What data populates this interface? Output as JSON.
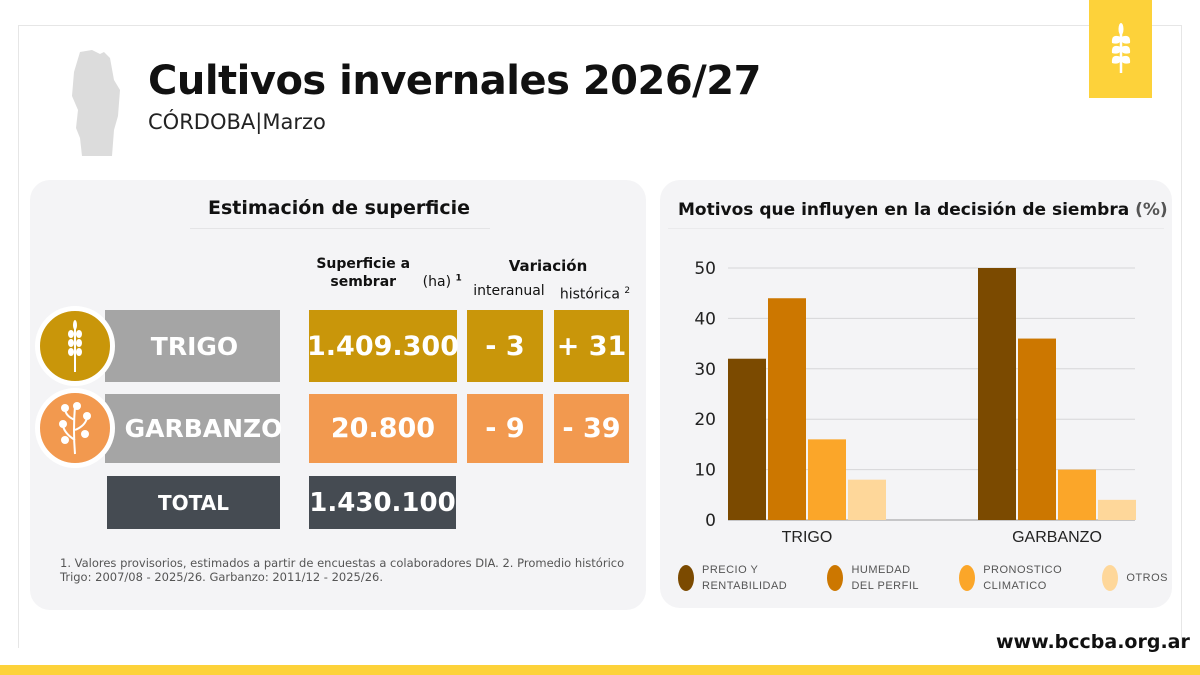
{
  "header": {
    "title": "Cultivos invernales 2026/27",
    "region": "CÓRDOBA",
    "separator": "|",
    "month": "Marzo"
  },
  "table": {
    "title": "Estimación de superficie",
    "col_surface_bold": "Superficie a sembrar",
    "col_surface_unit": "(ha)",
    "col_surface_note": "1",
    "col_variation": "Variación",
    "col_interanual": "interanual",
    "col_historica": "histórica",
    "col_historica_note": "2",
    "rows": [
      {
        "crop": "TRIGO",
        "surface": "1.409.300",
        "interanual": "- 3",
        "historica": "+ 31",
        "color": "#C9960A",
        "icon": "wheat-icon"
      },
      {
        "crop": "GARBANZO",
        "surface": "20.800",
        "interanual": "- 9",
        "historica": "- 39",
        "color": "#F2994F",
        "icon": "chickpea-plant-icon"
      }
    ],
    "total": {
      "label": "TOTAL",
      "surface": "1.430.100"
    },
    "footnote": "1. Valores provisorios, estimados a partir de encuestas a colaboradores DIA. 2. Promedio histórico Trigo: 2007/08 - 2025/26. Garbanzo: 2011/12 - 2025/26."
  },
  "chart_data": {
    "type": "bar",
    "title": "Motivos que influyen en la decisión de siembra",
    "title_unit": "(%)",
    "categories": [
      "TRIGO",
      "GARBANZO"
    ],
    "series": [
      {
        "name": "PRECIO Y RENTABILIDAD",
        "line1": "PRECIO Y",
        "line2": "RENTABILIDAD",
        "color": "#7B4A00",
        "values": [
          32,
          50
        ]
      },
      {
        "name": "HUMEDAD DEL PERFIL",
        "line1": "HUMEDAD",
        "line2": "DEL PERFIL",
        "color": "#CC7700",
        "values": [
          44,
          36
        ]
      },
      {
        "name": "PRONOSTICO CLIMATICO",
        "line1": "PRONOSTICO",
        "line2": "CLIMATICO",
        "color": "#FBA629",
        "values": [
          16,
          10
        ]
      },
      {
        "name": "OTROS",
        "line1": "OTROS",
        "line2": "",
        "color": "#FED79A",
        "values": [
          8,
          4
        ]
      }
    ],
    "ylim": [
      0,
      50
    ],
    "yticks": [
      0,
      10,
      20,
      30,
      40,
      50
    ],
    "grid": true,
    "legend": "bottom",
    "xlabel": "",
    "ylabel": ""
  },
  "footer": {
    "url": "www.bccba.org.ar"
  }
}
